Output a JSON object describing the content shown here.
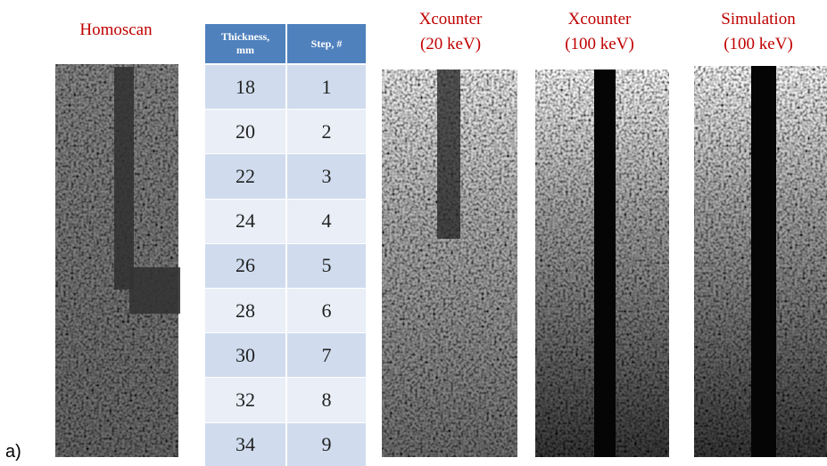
{
  "panel_label": "a)",
  "images": [
    {
      "title": [
        "Homoscan"
      ]
    },
    {
      "title": [
        "Xcounter",
        "(20 keV)"
      ]
    },
    {
      "title": [
        "Xcounter",
        "(100 keV)"
      ]
    },
    {
      "title": [
        "Simulation",
        "(100 keV)"
      ]
    }
  ],
  "table": {
    "header": [
      "Thickness, mm",
      "Step, #"
    ],
    "rows": [
      [
        "18",
        "1"
      ],
      [
        "20",
        "2"
      ],
      [
        "22",
        "3"
      ],
      [
        "24",
        "4"
      ],
      [
        "26",
        "5"
      ],
      [
        "28",
        "6"
      ],
      [
        "30",
        "7"
      ],
      [
        "32",
        "8"
      ],
      [
        "34",
        "9"
      ]
    ]
  }
}
